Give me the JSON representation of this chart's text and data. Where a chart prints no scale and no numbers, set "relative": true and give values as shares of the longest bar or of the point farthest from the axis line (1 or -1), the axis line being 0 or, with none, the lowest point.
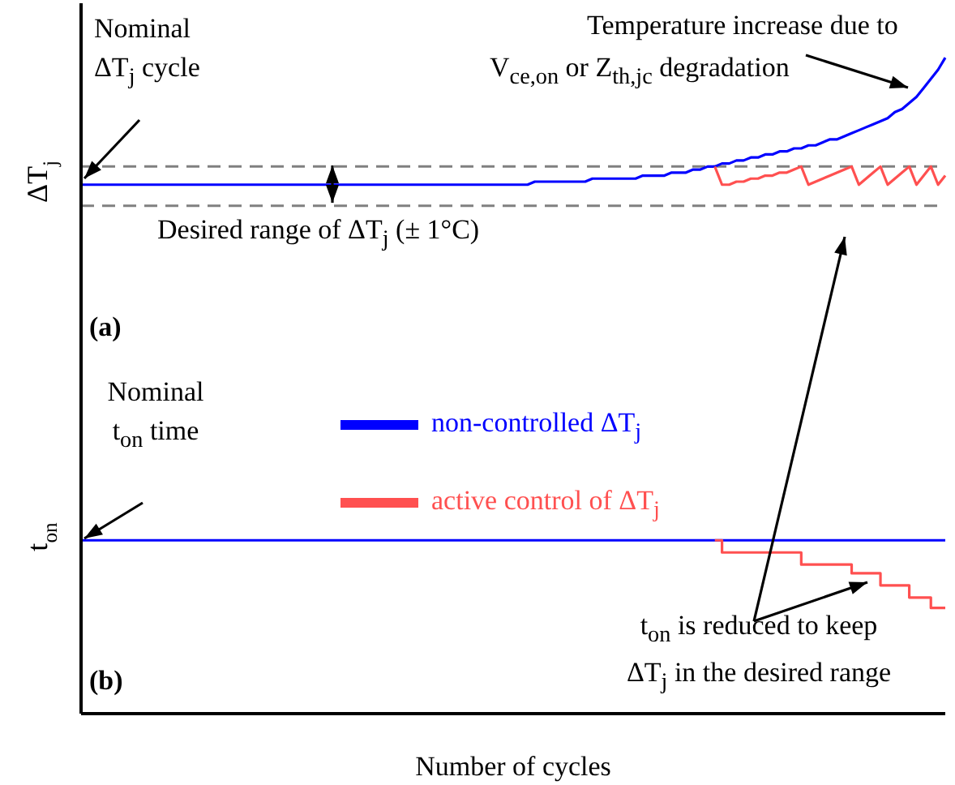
{
  "chart_data": [
    {
      "type": "line",
      "relative": true,
      "title": "(a)",
      "ylabel": "ΔT$_{j}$",
      "categories": [
        null,
        null,
        null,
        null,
        null,
        null,
        null,
        null,
        null,
        null,
        null,
        null,
        null,
        null,
        null,
        null,
        null,
        null,
        null,
        null,
        null,
        null,
        null,
        null,
        null,
        null,
        null,
        null,
        null,
        null,
        null,
        null,
        null,
        null,
        null,
        null,
        null,
        null,
        null,
        null,
        null,
        null,
        null,
        null,
        null,
        null,
        null,
        null,
        null,
        null,
        null,
        null,
        null,
        null,
        null,
        null,
        null,
        null,
        null,
        null,
        null,
        null,
        null,
        null,
        null,
        null,
        null,
        null,
        null,
        null,
        null,
        null,
        null,
        null,
        null,
        null,
        null,
        null,
        null,
        null,
        null,
        null,
        null,
        null,
        null,
        null,
        null,
        null,
        null,
        null,
        null,
        null,
        null,
        null,
        null,
        null,
        null,
        null,
        null,
        null,
        null,
        null,
        null,
        null,
        null,
        null,
        null,
        null,
        null,
        null,
        null,
        null,
        null,
        null,
        null,
        null,
        null,
        null,
        null,
        null,
        null
      ],
      "series": [
        {
          "color": "#0000ff",
          "values": [
            0.58,
            0.58,
            0.58,
            0.58,
            0.58,
            0.58,
            0.58,
            0.58,
            0.58,
            0.58,
            0.58,
            0.58,
            0.58,
            0.58,
            0.58,
            0.58,
            0.58,
            0.58,
            0.58,
            0.58,
            0.58,
            0.58,
            0.58,
            0.58,
            0.58,
            0.58,
            0.58,
            0.58,
            0.58,
            0.58,
            0.58,
            0.58,
            0.58,
            0.58,
            0.58,
            0.58,
            0.58,
            0.58,
            0.58,
            0.58,
            0.58,
            0.58,
            0.58,
            0.58,
            0.58,
            0.58,
            0.58,
            0.58,
            0.58,
            0.58,
            0.58,
            0.58,
            0.58,
            0.58,
            0.58,
            0.58,
            0.58,
            0.58,
            0.58,
            0.58,
            0.58,
            0.58,
            0.58,
            0.59,
            0.59,
            0.59,
            0.59,
            0.59,
            0.59,
            0.59,
            0.59,
            0.6,
            0.6,
            0.6,
            0.6,
            0.6,
            0.6,
            0.6,
            0.61,
            0.61,
            0.61,
            0.61,
            0.62,
            0.62,
            0.62,
            0.63,
            0.63,
            0.64,
            0.64,
            0.65,
            0.65,
            0.66,
            0.66,
            0.67,
            0.67,
            0.68,
            0.68,
            0.69,
            0.69,
            0.7,
            0.7,
            0.71,
            0.71,
            0.72,
            0.73,
            0.73,
            0.74,
            0.75,
            0.76,
            0.77,
            0.78,
            0.79,
            0.8,
            0.82,
            0.83,
            0.85,
            0.87,
            0.9,
            0.93,
            0.96,
            1
          ]
        },
        {
          "color": "#ff5050",
          "values": [
            null,
            null,
            null,
            null,
            null,
            null,
            null,
            null,
            null,
            null,
            null,
            null,
            null,
            null,
            null,
            null,
            null,
            null,
            null,
            null,
            null,
            null,
            null,
            null,
            null,
            null,
            null,
            null,
            null,
            null,
            null,
            null,
            null,
            null,
            null,
            null,
            null,
            null,
            null,
            null,
            null,
            null,
            null,
            null,
            null,
            null,
            null,
            null,
            null,
            null,
            null,
            null,
            null,
            null,
            null,
            null,
            null,
            null,
            null,
            null,
            null,
            null,
            null,
            null,
            null,
            null,
            null,
            null,
            null,
            null,
            null,
            null,
            null,
            null,
            null,
            null,
            null,
            null,
            null,
            null,
            null,
            null,
            null,
            null,
            null,
            null,
            null,
            null,
            0.64,
            0.58,
            0.58,
            0.59,
            0.59,
            0.6,
            0.6,
            0.61,
            0.61,
            0.62,
            0.62,
            0.63,
            0.64,
            0.58,
            0.59,
            0.6,
            0.61,
            0.62,
            0.63,
            0.64,
            0.58,
            0.6,
            0.62,
            0.64,
            0.58,
            0.6,
            0.62,
            0.64,
            0.58,
            0.61,
            0.64,
            0.58,
            0.61
          ]
        }
      ],
      "ref_lines": [
        {
          "axis": "y",
          "value": 0.64,
          "color": "#808080",
          "line_style": "dashed"
        },
        {
          "axis": "y",
          "value": 0.51,
          "color": "#808080",
          "line_style": "dashed"
        }
      ],
      "annotations": [
        "Nominal\nΔT$_{j}$ cycle",
        "Temperature increase due to\nV$_{ce,on}$ or Z$_{th,jc}$ degradation",
        "Desired range of ΔT$_{j}$ (± 1°C)"
      ]
    },
    {
      "type": "line",
      "relative": true,
      "title": "(b)",
      "ylabel": "t$_{on}$",
      "xlabel": "Number of cycles",
      "legend": "top",
      "categories": [
        null,
        null,
        null,
        null,
        null,
        null,
        null,
        null,
        null,
        null,
        null,
        null,
        null,
        null,
        null,
        null,
        null,
        null,
        null,
        null,
        null,
        null,
        null,
        null,
        null,
        null,
        null,
        null,
        null,
        null,
        null,
        null,
        null,
        null,
        null,
        null,
        null,
        null,
        null,
        null,
        null,
        null,
        null,
        null,
        null,
        null,
        null,
        null,
        null,
        null,
        null,
        null,
        null,
        null,
        null,
        null,
        null,
        null,
        null,
        null,
        null,
        null,
        null,
        null,
        null,
        null,
        null,
        null,
        null,
        null,
        null,
        null,
        null,
        null,
        null,
        null,
        null,
        null,
        null,
        null,
        null,
        null,
        null,
        null,
        null,
        null,
        null,
        null,
        null,
        null,
        null,
        null,
        null,
        null,
        null,
        null,
        null,
        null,
        null,
        null,
        null,
        null,
        null,
        null,
        null,
        null,
        null,
        null,
        null,
        null,
        null,
        null,
        null,
        null,
        null,
        null,
        null,
        null,
        null,
        null,
        null
      ],
      "series": [
        {
          "name": "non-controlled ΔT$_{j}$",
          "color": "#0000ff",
          "values": [
            1,
            1,
            1,
            1,
            1,
            1,
            1,
            1,
            1,
            1,
            1,
            1,
            1,
            1,
            1,
            1,
            1,
            1,
            1,
            1,
            1,
            1,
            1,
            1,
            1,
            1,
            1,
            1,
            1,
            1,
            1,
            1,
            1,
            1,
            1,
            1,
            1,
            1,
            1,
            1,
            1,
            1,
            1,
            1,
            1,
            1,
            1,
            1,
            1,
            1,
            1,
            1,
            1,
            1,
            1,
            1,
            1,
            1,
            1,
            1,
            1,
            1,
            1,
            1,
            1,
            1,
            1,
            1,
            1,
            1,
            1,
            1,
            1,
            1,
            1,
            1,
            1,
            1,
            1,
            1,
            1,
            1,
            1,
            1,
            1,
            1,
            1,
            1,
            1,
            1,
            1,
            1,
            1,
            1,
            1,
            1,
            1,
            1,
            1,
            1,
            1,
            1,
            1,
            1,
            1,
            1,
            1,
            1,
            1,
            1,
            1,
            1,
            1,
            1,
            1,
            1,
            1,
            1,
            1,
            1,
            1
          ]
        },
        {
          "name": "active control of ΔT$_{j}$",
          "type": "step",
          "color": "#ff5050",
          "values": [
            null,
            null,
            null,
            null,
            null,
            null,
            null,
            null,
            null,
            null,
            null,
            null,
            null,
            null,
            null,
            null,
            null,
            null,
            null,
            null,
            null,
            null,
            null,
            null,
            null,
            null,
            null,
            null,
            null,
            null,
            null,
            null,
            null,
            null,
            null,
            null,
            null,
            null,
            null,
            null,
            null,
            null,
            null,
            null,
            null,
            null,
            null,
            null,
            null,
            null,
            null,
            null,
            null,
            null,
            null,
            null,
            null,
            null,
            null,
            null,
            null,
            null,
            null,
            null,
            null,
            null,
            null,
            null,
            null,
            null,
            null,
            null,
            null,
            null,
            null,
            null,
            null,
            null,
            null,
            null,
            null,
            null,
            null,
            null,
            null,
            null,
            null,
            null,
            1,
            0.93,
            0.93,
            0.93,
            0.93,
            0.93,
            0.93,
            0.93,
            0.93,
            0.93,
            0.93,
            0.93,
            0.86,
            0.86,
            0.86,
            0.86,
            0.86,
            0.86,
            0.86,
            0.81,
            0.81,
            0.81,
            0.81,
            0.74,
            0.74,
            0.74,
            0.74,
            0.67,
            0.67,
            0.67,
            0.61,
            0.61,
            0.61
          ]
        }
      ],
      "annotations": [
        "Nominal\nt$_{on}$ time",
        "t$_{on}$ is reduced to keep\nΔT$_{j}$ in the desired range"
      ]
    }
  ]
}
